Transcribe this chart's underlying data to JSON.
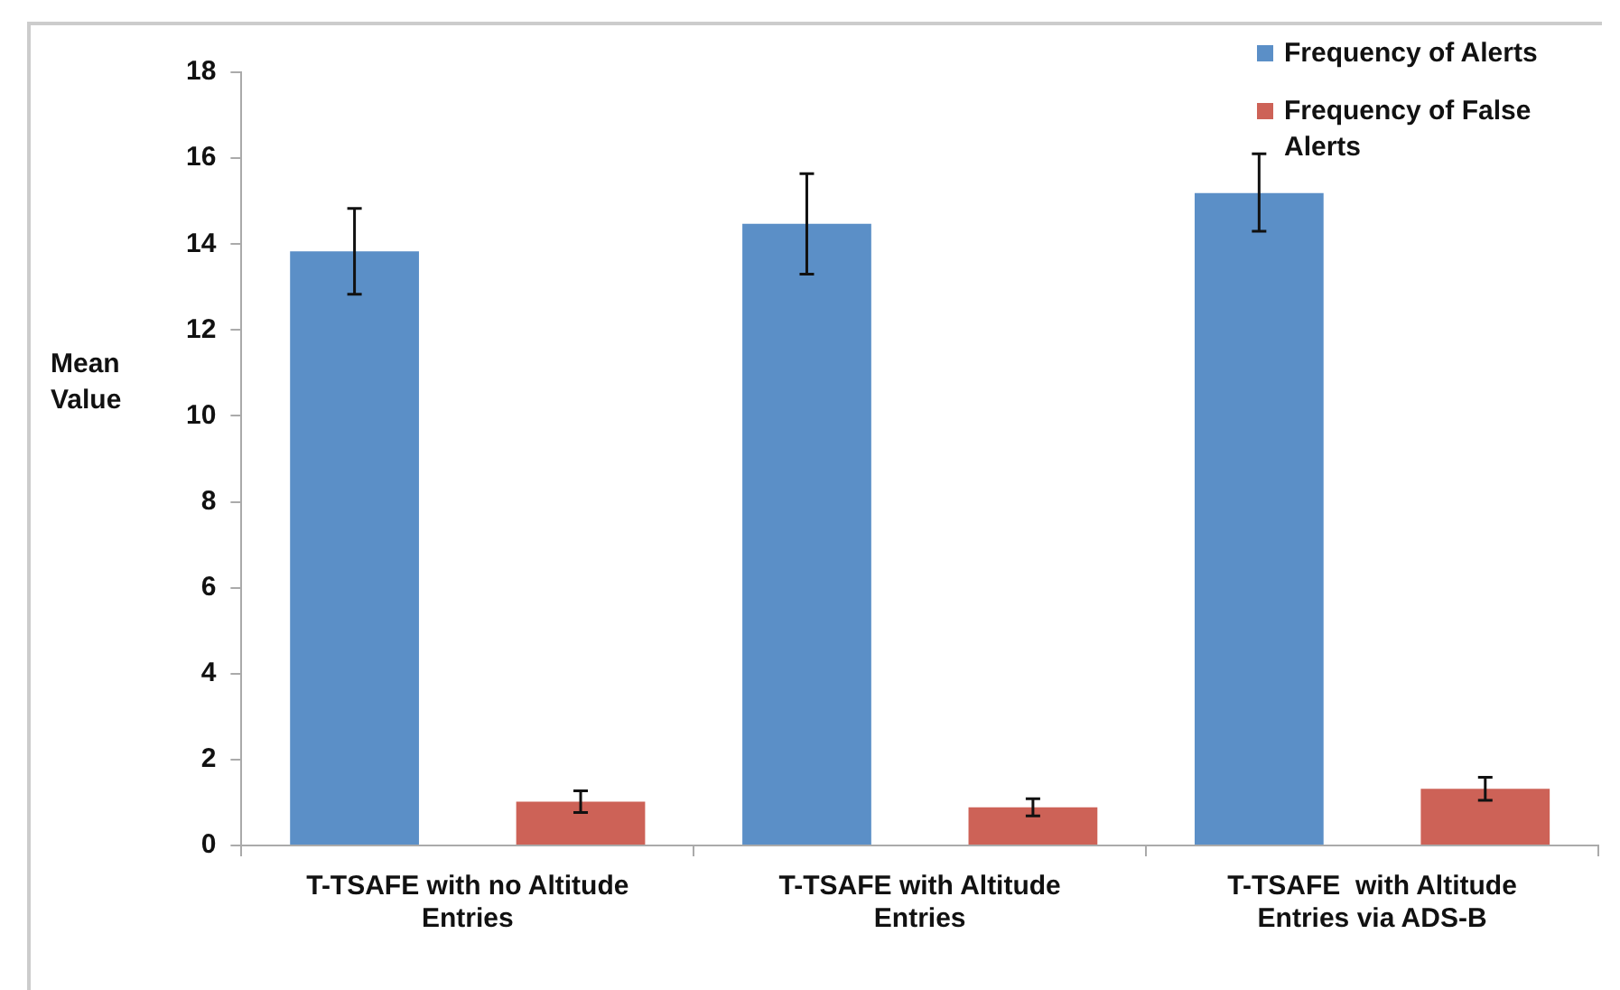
{
  "chart_data": {
    "type": "bar",
    "ylabel": "Mean Value",
    "categories": [
      "T-TSAFE with no Altitude Entries",
      "T-TSAFE with Altitude Entries",
      "T-TSAFE  with Altitude Entries via ADS-B"
    ],
    "series": [
      {
        "name": "Frequency of Alerts",
        "color": "#5b8fc7",
        "values": [
          13.83,
          14.47,
          15.19
        ],
        "errors": [
          1.0,
          1.17,
          [
            14.3,
            16.1
          ]
        ]
      },
      {
        "name": "Frequency of False Alerts",
        "color": "#cd6257",
        "values": [
          1.02,
          0.89,
          1.32
        ],
        "errors": [
          0.25,
          0.2,
          0.27
        ]
      }
    ],
    "ylim": [
      0,
      18
    ],
    "yticks": [
      0,
      2,
      4,
      6,
      8,
      10,
      12,
      14,
      16,
      18
    ],
    "grid": false,
    "legend": "top right"
  }
}
